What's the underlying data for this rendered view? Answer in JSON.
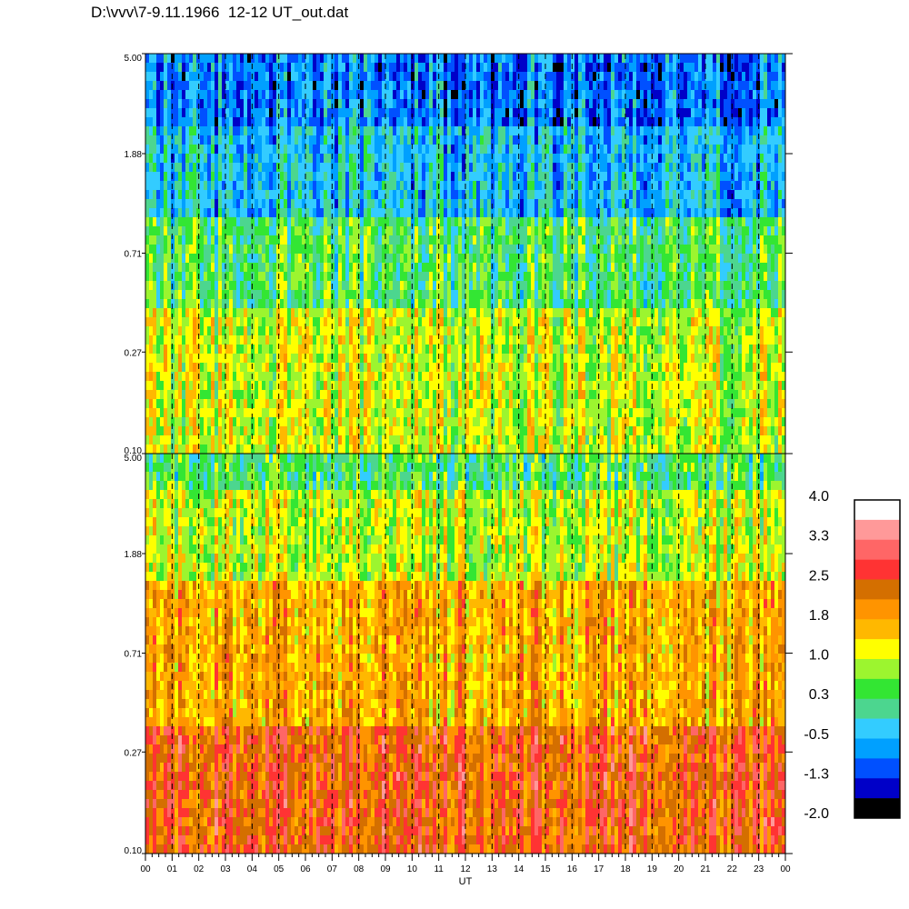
{
  "title": "D:\\vvv\\7-9.11.1966  12-12 UT_out.dat",
  "chart_data": [
    {
      "type": "heatmap",
      "name": "upper-panel",
      "xlabel": "",
      "ylabel": "",
      "y_scale": "log",
      "ylim": [
        0.1,
        5.0
      ],
      "y_ticks": [
        "0.10",
        "0.27",
        "0.71",
        "1.88",
        "5.00"
      ],
      "xlim": [
        0,
        24
      ],
      "x_ticks": [],
      "grid": "dashed vertical lines each hour",
      "colorscale_range": [
        -2.0,
        4.0
      ],
      "dominant_levels": [
        {
          "y_range": [
            2.5,
            5.0
          ],
          "level": -1.0
        },
        {
          "y_range": [
            1.0,
            2.5
          ],
          "level": -0.5
        },
        {
          "y_range": [
            0.4,
            1.0
          ],
          "level": 0.3
        },
        {
          "y_range": [
            0.1,
            0.4
          ],
          "level": 1.0
        }
      ]
    },
    {
      "type": "heatmap",
      "name": "lower-panel",
      "xlabel": "UT",
      "ylabel": "",
      "y_scale": "log",
      "ylim": [
        0.1,
        5.0
      ],
      "y_ticks": [
        "0.10",
        "0.27",
        "0.71",
        "1.88",
        "5.00"
      ],
      "xlim": [
        0,
        24
      ],
      "x_ticks": [
        "00",
        "01",
        "02",
        "03",
        "04",
        "05",
        "06",
        "07",
        "08",
        "09",
        "10",
        "11",
        "12",
        "13",
        "14",
        "15",
        "16",
        "17",
        "18",
        "19",
        "20",
        "21",
        "22",
        "23",
        "00"
      ],
      "grid": "dashed vertical lines each hour",
      "colorscale_range": [
        -2.0,
        4.0
      ],
      "dominant_levels": [
        {
          "y_range": [
            3.5,
            5.0
          ],
          "level": 0.3
        },
        {
          "y_range": [
            1.5,
            3.5
          ],
          "level": 1.0
        },
        {
          "y_range": [
            0.35,
            1.5
          ],
          "level": 1.8
        },
        {
          "y_range": [
            0.1,
            0.35
          ],
          "level": 2.5
        }
      ]
    }
  ],
  "colorbar": {
    "labels": [
      "4.0",
      "3.3",
      "2.5",
      "1.8",
      "1.0",
      "0.3",
      "-0.5",
      "-1.3",
      "-2.0"
    ],
    "colors": [
      "#ffffff",
      "#ff9999",
      "#ff6666",
      "#ff3333",
      "#d46f00",
      "#ff9400",
      "#ffb800",
      "#ffff00",
      "#9cf52f",
      "#33e633",
      "#4cd68f",
      "#33ccff",
      "#00a0ff",
      "#0050ff",
      "#0000c8",
      "#000000"
    ]
  }
}
